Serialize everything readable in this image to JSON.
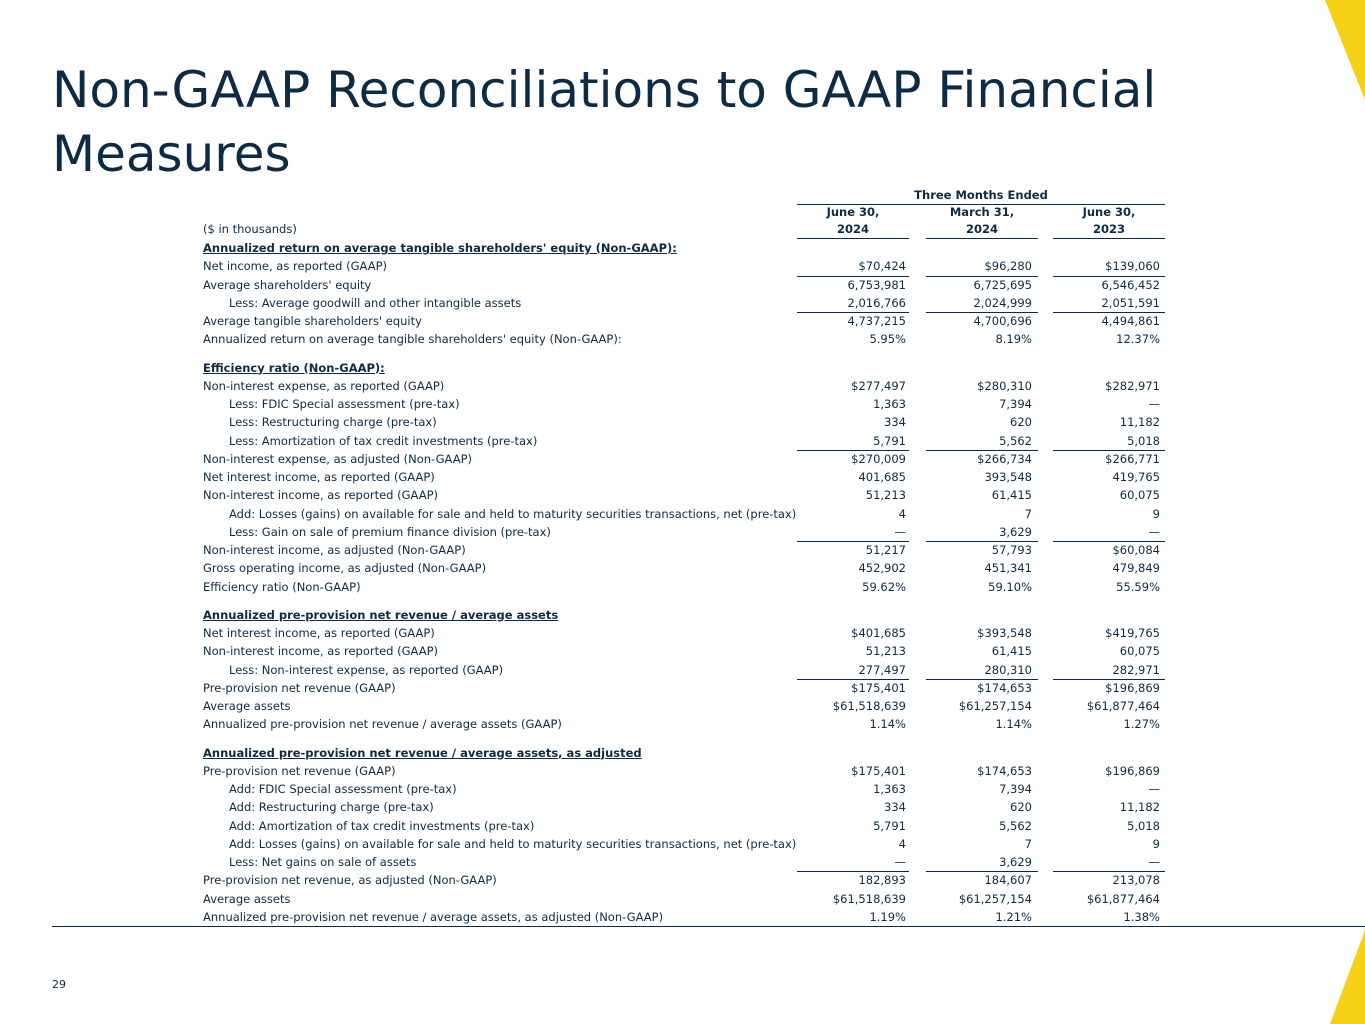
{
  "title": "Non-GAAP Reconciliations to GAAP Financial Measures",
  "page_number": "29",
  "table": {
    "group_header": "Three Months Ended",
    "unit": "($ in thousands)",
    "columns": [
      {
        "line1": "June 30,",
        "line2": "2024"
      },
      {
        "line1": "March 31,",
        "line2": "2024"
      },
      {
        "line1": "June 30,",
        "line2": "2023"
      }
    ],
    "sections": [
      {
        "title": "Annualized return on average tangible shareholders' equity (Non-GAAP):",
        "rows": [
          {
            "label": "Net income, as reported (GAAP)",
            "values": [
              "$70,424",
              "$96,280",
              "$139,060"
            ]
          },
          {
            "label": "Average shareholders' equity",
            "values": [
              "6,753,981",
              "6,725,695",
              "6,546,452"
            ]
          },
          {
            "label": "Less: Average goodwill and other intangible assets",
            "values": [
              "2,016,766",
              "2,024,999",
              "2,051,591"
            ]
          },
          {
            "label": "Average tangible shareholders' equity",
            "values": [
              "4,737,215",
              "4,700,696",
              "4,494,861"
            ]
          },
          {
            "label": "Annualized return on average tangible shareholders' equity (Non-GAAP):",
            "values": [
              "5.95%",
              "8.19%",
              "12.37%"
            ]
          }
        ]
      },
      {
        "title": "Efficiency ratio (Non-GAAP):",
        "rows": [
          {
            "label": "Non-interest expense, as reported (GAAP)",
            "values": [
              "$277,497",
              "$280,310",
              "$282,971"
            ]
          },
          {
            "label": "Less: FDIC Special assessment (pre-tax)",
            "values": [
              "1,363",
              "7,394",
              "—"
            ]
          },
          {
            "label": "Less: Restructuring charge (pre-tax)",
            "values": [
              "334",
              "620",
              "11,182"
            ]
          },
          {
            "label": "Less: Amortization of tax credit investments (pre-tax)",
            "values": [
              "5,791",
              "5,562",
              "5,018"
            ]
          },
          {
            "label": "Non-interest expense, as adjusted (Non-GAAP)",
            "values": [
              "$270,009",
              "$266,734",
              "$266,771"
            ]
          },
          {
            "label": "Net interest income, as reported (GAAP)",
            "values": [
              "401,685",
              "393,548",
              "419,765"
            ]
          },
          {
            "label": "Non-interest income, as reported (GAAP)",
            "values": [
              "51,213",
              "61,415",
              "60,075"
            ]
          },
          {
            "label": "Add: Losses (gains) on available for sale and held to maturity securities transactions, net (pre-tax)",
            "values": [
              "4",
              "7",
              "9"
            ]
          },
          {
            "label": "Less: Gain on sale of premium finance division (pre-tax)",
            "values": [
              "—",
              "3,629",
              "—"
            ]
          },
          {
            "label": "Non-interest income, as adjusted (Non-GAAP)",
            "values": [
              "51,217",
              "57,793",
              "$60,084"
            ]
          },
          {
            "label": "Gross operating income, as adjusted (Non-GAAP)",
            "values": [
              "452,902",
              "451,341",
              "479,849"
            ]
          },
          {
            "label": "Efficiency ratio (Non-GAAP)",
            "values": [
              "59.62%",
              "59.10%",
              "55.59%"
            ]
          }
        ]
      },
      {
        "title": "Annualized pre-provision net revenue / average assets",
        "rows": [
          {
            "label": "Net interest income, as reported (GAAP)",
            "values": [
              "$401,685",
              "$393,548",
              "$419,765"
            ]
          },
          {
            "label": "Non-interest income, as reported (GAAP)",
            "values": [
              "51,213",
              "61,415",
              "60,075"
            ]
          },
          {
            "label": "Less: Non-interest expense, as reported (GAAP)",
            "values": [
              "277,497",
              "280,310",
              "282,971"
            ]
          },
          {
            "label": "Pre-provision net revenue (GAAP)",
            "values": [
              "$175,401",
              "$174,653",
              "$196,869"
            ]
          },
          {
            "label": "Average assets",
            "values": [
              "$61,518,639",
              "$61,257,154",
              "$61,877,464"
            ]
          },
          {
            "label": "Annualized pre-provision net revenue / average assets (GAAP)",
            "values": [
              "1.14%",
              "1.14%",
              "1.27%"
            ]
          }
        ]
      },
      {
        "title": "Annualized pre-provision net revenue / average assets, as adjusted",
        "rows": [
          {
            "label": "Pre-provision net revenue (GAAP)",
            "values": [
              "$175,401",
              "$174,653",
              "$196,869"
            ]
          },
          {
            "label": "Add: FDIC Special assessment (pre-tax)",
            "values": [
              "1,363",
              "7,394",
              "—"
            ]
          },
          {
            "label": "Add: Restructuring charge (pre-tax)",
            "values": [
              "334",
              "620",
              "11,182"
            ]
          },
          {
            "label": "Add: Amortization of tax credit investments (pre-tax)",
            "values": [
              "5,791",
              "5,562",
              "5,018"
            ]
          },
          {
            "label": "Add: Losses (gains) on available for sale and held to maturity securities transactions, net (pre-tax)",
            "values": [
              "4",
              "7",
              "9"
            ]
          },
          {
            "label": "Less: Net gains on sale of assets",
            "values": [
              "—",
              "3,629",
              "—"
            ]
          },
          {
            "label": "Pre-provision net revenue, as adjusted (Non-GAAP)",
            "values": [
              "182,893",
              "184,607",
              "213,078"
            ]
          },
          {
            "label": "Average assets",
            "values": [
              "$61,518,639",
              "$61,257,154",
              "$61,877,464"
            ]
          },
          {
            "label": "Annualized pre-provision net revenue / average assets, as adjusted (Non-GAAP)",
            "values": [
              "1.19%",
              "1.21%",
              "1.38%"
            ]
          }
        ]
      }
    ]
  }
}
